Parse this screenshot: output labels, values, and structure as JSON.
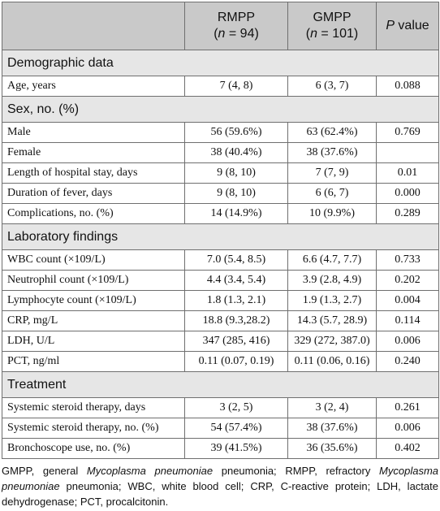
{
  "header": {
    "col1": "",
    "rmpp_label": "RMPP",
    "rmpp_n_var": "n",
    "rmpp_n_rest": " = 94)",
    "gmpp_label": "GMPP",
    "gmpp_n_var": "n",
    "gmpp_n_rest": " = 101)",
    "open_paren": "(",
    "p_var": "P",
    "p_rest": " value"
  },
  "sections": [
    {
      "title": "Demographic data",
      "rows": [
        {
          "label": "Age, years",
          "rmpp": "7 (4, 8)",
          "gmpp": "6 (3, 7)",
          "p": "0.088"
        }
      ]
    },
    {
      "title": "Sex, no. (%)",
      "rows": [
        {
          "label": "Male",
          "rmpp": "56 (59.6%)",
          "gmpp": "63 (62.4%)",
          "p": "0.769"
        },
        {
          "label": "Female",
          "rmpp": "38 (40.4%)",
          "gmpp": "38 (37.6%)",
          "p": ""
        },
        {
          "label": "Length of hospital stay, days",
          "rmpp": "9 (8, 10)",
          "gmpp": "7 (7, 9)",
          "p": "0.01"
        },
        {
          "label": "Duration of fever, days",
          "rmpp": "9 (8, 10)",
          "gmpp": "6 (6, 7)",
          "p": "0.000"
        },
        {
          "label": "Complications, no. (%)",
          "rmpp": "14 (14.9%)",
          "gmpp": "10 (9.9%)",
          "p": "0.289"
        }
      ]
    },
    {
      "title": "Laboratory findings",
      "rows": [
        {
          "label": "WBC count (×109/L)",
          "rmpp": "7.0 (5.4, 8.5)",
          "gmpp": "6.6 (4.7, 7.7)",
          "p": "0.733"
        },
        {
          "label": "Neutrophil count (×109/L)",
          "rmpp": "4.4 (3.4, 5.4)",
          "gmpp": "3.9 (2.8, 4.9)",
          "p": "0.202"
        },
        {
          "label": "Lymphocyte count (×109/L)",
          "rmpp": "1.8 (1.3, 2.1)",
          "gmpp": "1.9 (1.3, 2.7)",
          "p": "0.004"
        },
        {
          "label": "CRP, mg/L",
          "rmpp": "18.8 (9.3,28.2)",
          "gmpp": "14.3 (5.7, 28.9)",
          "p": "0.114"
        },
        {
          "label": "LDH, U/L",
          "rmpp": "347 (285, 416)",
          "gmpp": "329 (272, 387.0)",
          "p": "0.006"
        },
        {
          "label": "PCT, ng/ml",
          "rmpp": "0.11 (0.07, 0.19)",
          "gmpp": "0.11 (0.06, 0.16)",
          "p": "0.240"
        }
      ]
    },
    {
      "title": "Treatment",
      "rows": [
        {
          "label": "Systemic steroid therapy, days",
          "rmpp": "3 (2, 5)",
          "gmpp": "3 (2, 4)",
          "p": "0.261"
        },
        {
          "label": "Systemic steroid therapy, no. (%)",
          "rmpp": "54 (57.4%)",
          "gmpp": "38 (37.6%)",
          "p": "0.006"
        },
        {
          "label": "Bronchoscope use, no. (%)",
          "rmpp": "39 (41.5%)",
          "gmpp": "36 (35.6%)",
          "p": "0.402"
        }
      ]
    }
  ],
  "footnote": {
    "p1": "GMPP, general ",
    "i1": "Mycoplasma pneumoniae",
    "p2": " pneumonia; RMPP, refractory ",
    "i2": "Mycoplasma pneumoniae",
    "p3": " pneumonia; WBC, white blood cell; CRP, C-reactive protein; LDH, lactate dehydrogenase; PCT, procalcitonin."
  }
}
